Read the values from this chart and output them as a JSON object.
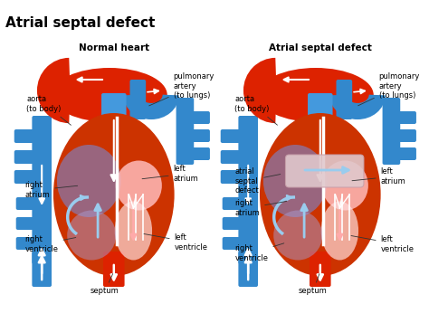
{
  "title": "Atrial septal defect",
  "left_subtitle": "Normal heart",
  "right_subtitle": "Atrial septal defect",
  "bg_color": "#ffffff",
  "title_fontsize": 11,
  "subtitle_fontsize": 7.5,
  "label_fontsize": 6,
  "red": "#dd2200",
  "red2": "#cc3300",
  "blue": "#3388cc",
  "blue2": "#4499dd",
  "light_blue": "#99ccee",
  "purple": "#8877aa",
  "purple2": "#7766aa",
  "pink_light": "#ffdddd",
  "pink2": "#ffbbbb",
  "white": "#ffffff",
  "arrow_white": "#ffffff",
  "asd_band": "#ddc8cc",
  "label_line_color": "#333333"
}
